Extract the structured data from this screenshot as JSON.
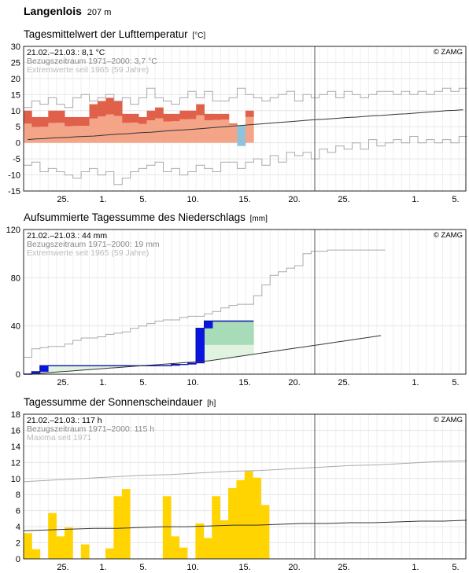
{
  "header": {
    "station": "Langenlois",
    "altitude": "207 m"
  },
  "chart_data": [
    {
      "type": "bar",
      "title": "Tagesmittelwert der Lufttemperatur",
      "unit": "[°C]",
      "ylim": [
        -15,
        30
      ],
      "yticks": [
        -15,
        -10,
        -5,
        0,
        5,
        10,
        15,
        20,
        25,
        30
      ],
      "xtick_labels": [
        "25.",
        "1.",
        "5.",
        "10.",
        "15.",
        "20.",
        "25.",
        "1.",
        "5."
      ],
      "grid": true,
      "legend_lines": [
        "21.02.–21.03.: 8,1 °C",
        "Bezugszeitraum 1971–2000: 3,7 °C",
        "Extremwerte seit 1965 (59 Jahre)"
      ],
      "credit": "© ZAMG",
      "series": [
        {
          "name": "Tagesmittel",
          "values": [
            10,
            8,
            8,
            10,
            10,
            8,
            8,
            8,
            12,
            13,
            14,
            13,
            9,
            9,
            8,
            10,
            11,
            9,
            9,
            10,
            10,
            12,
            9,
            9,
            9,
            6,
            -1,
            10
          ]
        },
        {
          "name": "Bezugszeitraum 1971–2000",
          "values": [
            1.0,
            1.2,
            1.3,
            1.5,
            1.6,
            1.7,
            1.9,
            2.0,
            2.1,
            2.3,
            2.5,
            2.7,
            2.8,
            3.0,
            3.2,
            3.3,
            3.5,
            3.7,
            3.9,
            4.0,
            4.2,
            4.4,
            4.6,
            4.8,
            5.0,
            5.2,
            5.4,
            5.6,
            5.8,
            6.0,
            6.2,
            6.4,
            6.6,
            6.8,
            7.0,
            7.2,
            7.3,
            7.5,
            7.7,
            7.9,
            8.0,
            8.2,
            8.4,
            8.5,
            8.7,
            8.9,
            9.0,
            9.2,
            9.4,
            9.6,
            9.8,
            10.0,
            10.1,
            10.3
          ]
        },
        {
          "name": "Extremwerte max",
          "values": [
            11,
            13,
            12,
            14,
            12,
            11,
            14,
            15,
            13,
            14,
            15,
            13,
            14,
            12,
            14,
            17,
            14,
            13,
            12,
            14,
            16,
            14,
            16,
            13,
            13,
            14,
            17,
            15,
            14,
            13,
            14,
            15,
            16,
            13,
            15,
            14,
            15,
            16,
            14,
            16,
            15,
            14,
            15,
            16,
            16,
            15,
            16,
            15,
            16,
            15,
            16,
            17,
            16,
            17
          ]
        },
        {
          "name": "Extremwerte min",
          "values": [
            -7,
            -6,
            -9,
            -8,
            -9,
            -10,
            -11,
            -9,
            -8,
            -10,
            -9,
            -13,
            -11,
            -9,
            -8,
            -7,
            -6,
            -9,
            -8,
            -10,
            -9,
            -7,
            -8,
            -9,
            -6,
            -6,
            -8,
            -6,
            -5,
            -7,
            -4,
            -6,
            -3,
            -4,
            -3,
            -5,
            -2,
            -3,
            -1,
            -2,
            0,
            -2,
            1,
            -1,
            0,
            1,
            0,
            2,
            0,
            1,
            0,
            1,
            0,
            2
          ]
        }
      ]
    },
    {
      "type": "area",
      "title": "Aufsummierte Tagessumme des Niederschlags",
      "unit": "[mm]",
      "ylim": [
        0,
        120
      ],
      "yticks": [
        0,
        40,
        80,
        120
      ],
      "xtick_labels": [
        "25.",
        "1.",
        "5.",
        "10.",
        "15.",
        "20.",
        "25.",
        "1.",
        "5."
      ],
      "grid": true,
      "legend_lines": [
        "21.02.–21.03.: 44 mm",
        "Bezugszeitraum 1971–2000: 19 mm",
        "Extremwerte seit 1965 (59 Jahre)"
      ],
      "credit": "© ZAMG",
      "series": [
        {
          "name": "Niederschlag kumuliert",
          "values": [
            0,
            2,
            7,
            7,
            7,
            7,
            7,
            7,
            7,
            7,
            7,
            7,
            7,
            7,
            7,
            7,
            7,
            7,
            8,
            8,
            9,
            38,
            44,
            44,
            44,
            44,
            44,
            44
          ]
        },
        {
          "name": "Bezugszeitraum 1971–2000",
          "values": [
            0,
            0.5,
            1,
            1.5,
            2,
            2.5,
            3,
            3.5,
            4,
            4.5,
            5,
            5.5,
            6,
            6.5,
            7,
            7.5,
            8,
            8.5,
            9,
            9.5,
            10,
            10.5,
            11,
            12,
            13,
            14,
            15,
            16,
            17,
            18,
            19,
            20,
            21,
            22,
            23,
            24,
            25,
            26,
            27,
            28,
            29,
            30,
            31,
            32
          ]
        },
        {
          "name": "Extremwerte max",
          "values": [
            14,
            21,
            22,
            23,
            23,
            25,
            28,
            30,
            30,
            31,
            33,
            34,
            35,
            38,
            40,
            42,
            44,
            45,
            45,
            47,
            48,
            48,
            50,
            52,
            55,
            57,
            58,
            58,
            65,
            74,
            82,
            85,
            88,
            90,
            100,
            102,
            102,
            103,
            103,
            103,
            103,
            103,
            103,
            103
          ]
        },
        {
          "name": "Extremwerte min",
          "values": [
            0,
            0,
            0,
            0,
            0,
            0,
            0,
            0,
            0,
            0,
            0,
            0,
            0,
            0,
            0,
            0,
            0,
            0,
            0,
            0,
            0,
            0,
            0,
            0,
            0,
            0,
            0,
            0,
            0,
            0,
            0,
            0,
            0,
            0,
            0,
            0,
            0,
            0,
            0,
            0,
            0,
            0,
            0,
            0
          ]
        }
      ]
    },
    {
      "type": "bar",
      "title": "Tagessumme der Sonnenscheindauer",
      "unit": "[h]",
      "ylim": [
        0,
        18
      ],
      "yticks": [
        0,
        2,
        4,
        6,
        8,
        10,
        12,
        14,
        16,
        18
      ],
      "xtick_labels": [
        "25.",
        "1.",
        "5.",
        "10.",
        "15.",
        "20.",
        "25.",
        "1.",
        "5."
      ],
      "grid": true,
      "legend_lines": [
        "21.02.–21.03.: 117 h",
        "Bezugszeitraum 1971–2000: 115 h",
        "Maxima seit 1971"
      ],
      "credit": "© ZAMG",
      "series": [
        {
          "name": "Sonnenscheindauer",
          "values": [
            3.2,
            1.2,
            0,
            5.7,
            2.8,
            3.9,
            0,
            1.8,
            0,
            0,
            1.3,
            7.8,
            8.7,
            0,
            0,
            0,
            0,
            7.8,
            2.8,
            1.4,
            0,
            4.4,
            2.6,
            7.8,
            4.8,
            8.8,
            9.8,
            10.9,
            10.1,
            6.7
          ]
        },
        {
          "name": "Bezugszeitraum 1971–2000",
          "values": [
            3.5,
            3.6,
            3.7,
            3.8,
            3.8,
            3.9,
            4.0,
            4.0,
            4.1,
            4.2,
            4.2,
            4.3,
            4.4,
            4.4,
            4.5,
            4.5,
            4.6,
            4.7,
            4.7,
            4.8
          ]
        },
        {
          "name": "Maxima seit 1971",
          "values": [
            9.6,
            9.8,
            10.0,
            10.2,
            10.4,
            10.5,
            10.7,
            10.9,
            11.0,
            11.2,
            11.4,
            11.6,
            11.7,
            11.9,
            12.1,
            12.2
          ]
        }
      ]
    }
  ]
}
